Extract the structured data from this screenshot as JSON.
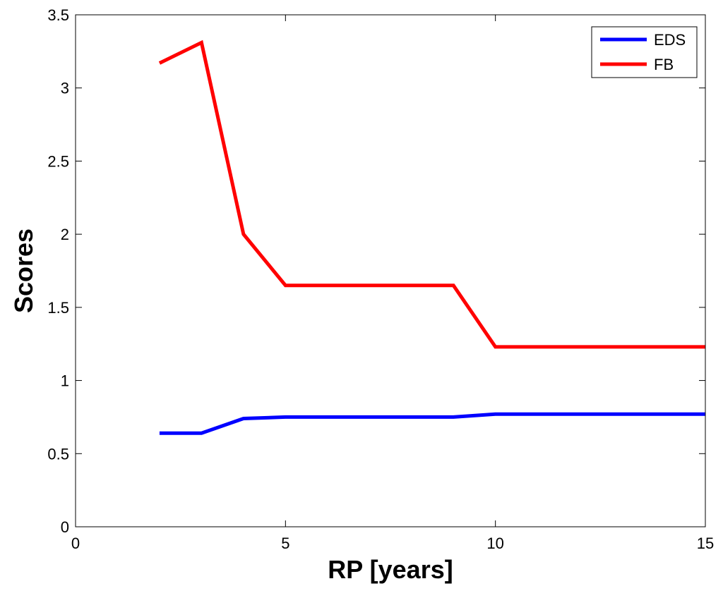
{
  "chart_data": {
    "type": "line",
    "title": "",
    "xlabel": "RP [years]",
    "ylabel": "Scores",
    "xlim": [
      0,
      15
    ],
    "ylim": [
      0,
      3.5
    ],
    "xticks": [
      "0",
      "5",
      "10",
      "15"
    ],
    "yticks": [
      "0",
      "0.5",
      "1",
      "1.5",
      "2",
      "2.5",
      "3",
      "3.5"
    ],
    "grid": false,
    "legend_position": "top-right",
    "series": [
      {
        "name": "EDS",
        "color": "#0000ff",
        "x": [
          2,
          3,
          4,
          5,
          6,
          7,
          8,
          9,
          10,
          11,
          12,
          13,
          14,
          15
        ],
        "y": [
          0.64,
          0.64,
          0.74,
          0.75,
          0.75,
          0.75,
          0.75,
          0.75,
          0.77,
          0.77,
          0.77,
          0.77,
          0.77,
          0.77
        ]
      },
      {
        "name": "FB",
        "color": "#ff0000",
        "x": [
          2,
          3,
          4,
          5,
          6,
          7,
          8,
          9,
          10,
          11,
          12,
          13,
          14,
          15
        ],
        "y": [
          3.17,
          3.31,
          2.0,
          1.65,
          1.65,
          1.65,
          1.65,
          1.65,
          1.23,
          1.23,
          1.23,
          1.23,
          1.23,
          1.23
        ]
      }
    ]
  }
}
